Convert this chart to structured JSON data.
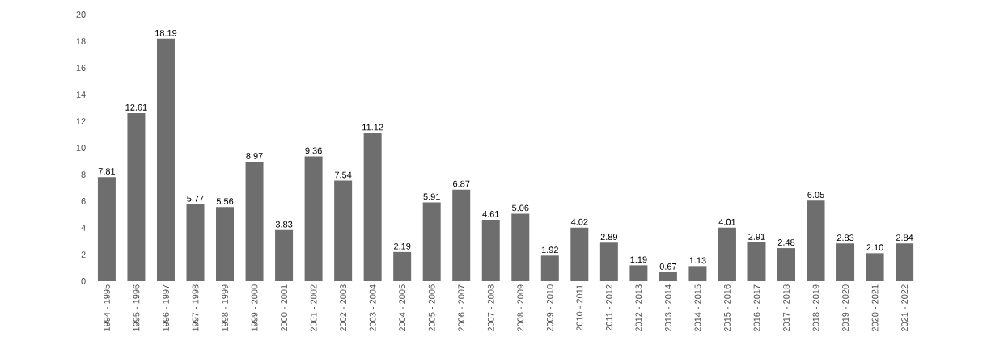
{
  "chart_data": {
    "type": "bar",
    "categories": [
      "1994 - 1995",
      "1995 - 1996",
      "1996 - 1997",
      "1997 - 1998",
      "1998 - 1999",
      "1999 - 2000",
      "2000 - 2001",
      "2001 - 2002",
      "2002 - 2003",
      "2003 - 2004",
      "2004 - 2005",
      "2005 - 2006",
      "2006 - 2007",
      "2007 - 2008",
      "2008 - 2009",
      "2009 - 2010",
      "2010 - 2011",
      "2011 - 2012",
      "2012 - 2013",
      "2013 - 2014",
      "2014 - 2015",
      "2015 - 2016",
      "2016 - 2017",
      "2017 - 2018",
      "2018 - 2019",
      "2019 - 2020",
      "2020 - 2021",
      "2021 - 2022"
    ],
    "values": [
      7.81,
      12.61,
      18.19,
      5.77,
      5.56,
      8.97,
      3.83,
      9.36,
      7.54,
      11.12,
      2.19,
      5.91,
      6.87,
      4.61,
      5.06,
      1.92,
      4.02,
      2.89,
      1.19,
      0.67,
      1.13,
      4.01,
      2.91,
      2.48,
      6.05,
      2.83,
      2.1,
      2.84
    ],
    "value_labels": [
      "7.81",
      "12.61",
      "18.19",
      "5.77",
      "5.56",
      "8.97",
      "3.83",
      "9.36",
      "7.54",
      "11.12",
      "2.19",
      "5.91",
      "6.87",
      "4.61",
      "5.06",
      "1.92",
      "4.02",
      "2.89",
      "1.19",
      "0.67",
      "1.13",
      "4.01",
      "2.91",
      "2.48",
      "6.05",
      "2.83",
      "2.10",
      "2.84"
    ],
    "color": "#6e6e6e",
    "ylim": [
      0,
      20
    ],
    "yticks": [
      0,
      2,
      4,
      6,
      8,
      10,
      12,
      14,
      16,
      18,
      20
    ],
    "grid": false
  }
}
